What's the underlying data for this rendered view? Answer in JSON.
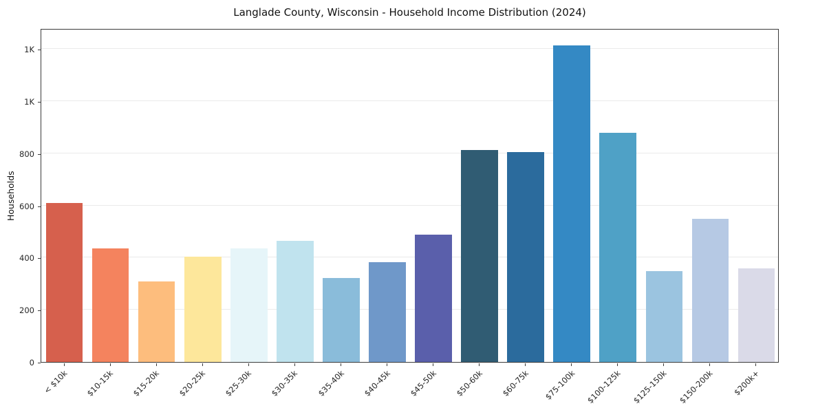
{
  "title": "Langlade County, Wisconsin - Household Income Distribution (2024)",
  "chart_data": {
    "type": "bar",
    "title": "Langlade County, Wisconsin - Household Income Distribution (2024)",
    "xlabel": "",
    "ylabel": "Households",
    "ylim": [
      0,
      1280
    ],
    "grid": true,
    "legend": "none",
    "categories": [
      "< $10k",
      "$10-15k",
      "$15-20k",
      "$20-25k",
      "$25-30k",
      "$30-35k",
      "$35-40k",
      "$40-45k",
      "$45-50k",
      "$50-60k",
      "$60-75k",
      "$75-100k",
      "$100-125k",
      "$125-150k",
      "$150-200k",
      "$200k+"
    ],
    "values": [
      610,
      435,
      308,
      405,
      435,
      465,
      322,
      382,
      488,
      812,
      805,
      1215,
      880,
      348,
      550,
      358
    ],
    "bar_colors": [
      "#d6604d",
      "#f4835e",
      "#fdbd7d",
      "#fde79b",
      "#e6f5f9",
      "#c0e3ee",
      "#8abcda",
      "#6f98c9",
      "#5a5fab",
      "#305c73",
      "#2b6b9d",
      "#3489c4",
      "#4fa1c6",
      "#9bc4e0",
      "#b6c9e4",
      "#dadae8"
    ],
    "yticks": [
      {
        "value": 0,
        "label": "0"
      },
      {
        "value": 200,
        "label": "200"
      },
      {
        "value": 400,
        "label": "400"
      },
      {
        "value": 600,
        "label": "600"
      },
      {
        "value": 800,
        "label": "800"
      },
      {
        "value": 1000,
        "label": "1K"
      },
      {
        "value": 1200,
        "label": "1K"
      }
    ]
  }
}
